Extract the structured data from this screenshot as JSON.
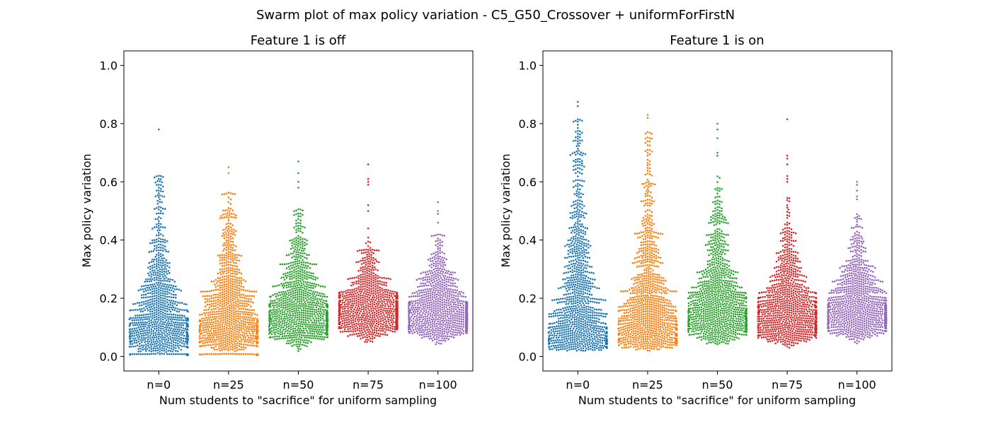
{
  "figure": {
    "suptitle": "Swarm plot of max policy variation - C5_G50_Crossover + uniformForFirstN"
  },
  "chart_data": [
    {
      "type": "swarm",
      "title": "Feature 1 is off",
      "xlabel": "Num students to \"sacrifice\" for uniform sampling",
      "ylabel": "Max policy variation",
      "categories": [
        "n=0",
        "n=25",
        "n=50",
        "n=75",
        "n=100"
      ],
      "ylim": [
        -0.05,
        1.05
      ],
      "yticks": [
        0.0,
        0.2,
        0.4,
        0.6,
        0.8,
        1.0
      ],
      "ytick_labels": [
        "0.0",
        "0.2",
        "0.4",
        "0.6",
        "0.8",
        "1.0"
      ],
      "grid": false,
      "colors": [
        "#1f77b4",
        "#ff7f0e",
        "#2ca02c",
        "#d62728",
        "#9467bd"
      ],
      "series": [
        {
          "category": "n=0",
          "points_approx": 1000,
          "min": 0.005,
          "q1": 0.09,
          "median": 0.15,
          "q3": 0.28,
          "max_main": 0.64,
          "outliers": [
            0.78
          ],
          "dense_band": 0.005
        },
        {
          "category": "n=25",
          "points_approx": 1000,
          "min": 0.005,
          "q1": 0.1,
          "median": 0.15,
          "q3": 0.26,
          "max_main": 0.57,
          "outliers": [
            0.65,
            0.63
          ],
          "dense_band": 0.005
        },
        {
          "category": "n=50",
          "points_approx": 1000,
          "min": 0.005,
          "q1": 0.1,
          "median": 0.16,
          "q3": 0.24,
          "max_main": 0.52,
          "outliers": [
            0.67,
            0.63,
            0.6,
            0.58
          ],
          "dense_band": null
        },
        {
          "category": "n=75",
          "points_approx": 1000,
          "min": 0.03,
          "q1": 0.11,
          "median": 0.16,
          "q3": 0.21,
          "max_main": 0.45,
          "outliers": [
            0.66,
            0.61,
            0.6,
            0.59,
            0.52,
            0.5
          ],
          "dense_band": null
        },
        {
          "category": "n=100",
          "points_approx": 1000,
          "min": 0.03,
          "q1": 0.11,
          "median": 0.16,
          "q3": 0.22,
          "max_main": 0.42,
          "outliers": [
            0.53,
            0.5,
            0.49,
            0.46
          ],
          "dense_band": null
        }
      ]
    },
    {
      "type": "swarm",
      "title": "Feature 1 is on",
      "xlabel": "Num students to \"sacrifice\" for uniform sampling",
      "ylabel": "Max policy variation",
      "categories": [
        "n=0",
        "n=25",
        "n=50",
        "n=75",
        "n=100"
      ],
      "ylim": [
        -0.05,
        1.05
      ],
      "yticks": [
        0.0,
        0.2,
        0.4,
        0.6,
        0.8,
        1.0
      ],
      "ytick_labels": [
        "0.0",
        "0.2",
        "0.4",
        "0.6",
        "0.8",
        "1.0"
      ],
      "grid": false,
      "colors": [
        "#1f77b4",
        "#ff7f0e",
        "#2ca02c",
        "#d62728",
        "#9467bd"
      ],
      "series": [
        {
          "category": "n=0",
          "points_approx": 1000,
          "min": 0.02,
          "q1": 0.12,
          "median": 0.19,
          "q3": 0.45,
          "max_main": 0.82,
          "outliers": [
            0.875,
            0.86
          ],
          "dense_band": null
        },
        {
          "category": "n=25",
          "points_approx": 1000,
          "min": 0.02,
          "q1": 0.11,
          "median": 0.18,
          "q3": 0.35,
          "max_main": 0.78,
          "outliers": [
            0.83,
            0.82
          ],
          "dense_band": null
        },
        {
          "category": "n=50",
          "points_approx": 1000,
          "min": 0.04,
          "q1": 0.12,
          "median": 0.18,
          "q3": 0.28,
          "max_main": 0.62,
          "outliers": [
            0.8,
            0.78,
            0.75,
            0.7,
            0.69
          ],
          "dense_band": null
        },
        {
          "category": "n=75",
          "points_approx": 1000,
          "min": 0.03,
          "q1": 0.11,
          "median": 0.16,
          "q3": 0.24,
          "max_main": 0.55,
          "outliers": [
            0.815,
            0.69,
            0.68,
            0.66,
            0.62,
            0.61,
            0.6
          ],
          "dense_band": null
        },
        {
          "category": "n=100",
          "points_approx": 1000,
          "min": 0.03,
          "q1": 0.12,
          "median": 0.17,
          "q3": 0.24,
          "max_main": 0.5,
          "outliers": [
            0.6,
            0.59,
            0.57,
            0.55,
            0.54
          ],
          "dense_band": null
        }
      ]
    }
  ]
}
